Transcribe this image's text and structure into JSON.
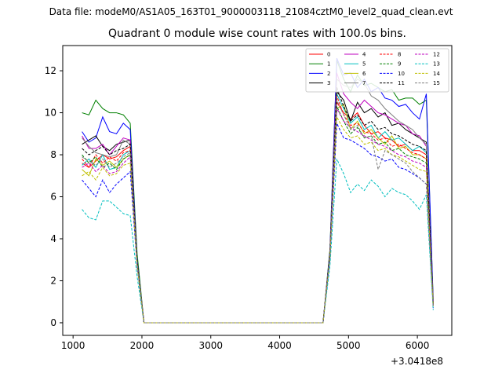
{
  "suptitle": "Data file: modeM0/AS1A05_163T01_9000003118_21084cztM0_level2_quad_clean.evt",
  "chart_data": {
    "type": "line",
    "title": "Quadrant 0 module wise count rates with 100.0s bins.",
    "xlabel": "",
    "ylabel": "",
    "x_offset_label": "+3.0418e8",
    "xlim": [
      850,
      6500
    ],
    "ylim": [
      -0.6,
      13.2
    ],
    "xticks": [
      1000,
      2000,
      3000,
      4000,
      5000,
      6000
    ],
    "yticks": [
      0,
      2,
      4,
      6,
      8,
      10,
      12
    ],
    "grid": false,
    "legend": {
      "placement": "top-right",
      "ncol": 4
    },
    "x": [
      1130,
      1230,
      1330,
      1430,
      1530,
      1630,
      1730,
      1830,
      1930,
      2030,
      2130,
      2230,
      2330,
      2430,
      2530,
      2630,
      2730,
      2830,
      2930,
      3030,
      3130,
      3230,
      3330,
      3430,
      3530,
      3630,
      3730,
      3830,
      3930,
      4030,
      4130,
      4230,
      4330,
      4430,
      4530,
      4630,
      4730,
      4830,
      4930,
      5030,
      5130,
      5230,
      5330,
      5430,
      5530,
      5630,
      5730,
      5830,
      5930,
      6030,
      6130,
      6230
    ],
    "series": [
      {
        "name": "0",
        "color": "#ff0000",
        "dash": false,
        "values": [
          7.6,
          7.4,
          7.7,
          8.0,
          7.8,
          7.9,
          8.2,
          8.4,
          2.9,
          0,
          0,
          0,
          0,
          0,
          0,
          0,
          0,
          0,
          0,
          0,
          0,
          0,
          0,
          0,
          0,
          0,
          0,
          0,
          0,
          0,
          0,
          0,
          0,
          0,
          0,
          0,
          3.2,
          10.5,
          10.0,
          9.7,
          10.0,
          9.4,
          9.0,
          9.1,
          8.8,
          8.7,
          8.4,
          8.5,
          8.2,
          8.2,
          8.0,
          0.9
        ]
      },
      {
        "name": "1",
        "color": "#008000",
        "dash": false,
        "values": [
          10.0,
          9.9,
          10.6,
          10.2,
          10.0,
          10.0,
          9.9,
          9.5,
          3.3,
          0,
          0,
          0,
          0,
          0,
          0,
          0,
          0,
          0,
          0,
          0,
          0,
          0,
          0,
          0,
          0,
          0,
          0,
          0,
          0,
          0,
          0,
          0,
          0,
          0,
          0,
          0,
          3.5,
          12.5,
          11.6,
          11.0,
          11.8,
          11.3,
          11.4,
          11.2,
          11.0,
          11.1,
          10.6,
          10.7,
          10.7,
          10.4,
          10.6,
          1.1
        ]
      },
      {
        "name": "2",
        "color": "#0000ff",
        "dash": false,
        "values": [
          9.1,
          8.6,
          8.8,
          9.8,
          9.1,
          9.0,
          9.5,
          9.2,
          3.0,
          0,
          0,
          0,
          0,
          0,
          0,
          0,
          0,
          0,
          0,
          0,
          0,
          0,
          0,
          0,
          0,
          0,
          0,
          0,
          0,
          0,
          0,
          0,
          0,
          0,
          0,
          0,
          3.4,
          12.6,
          11.8,
          11.9,
          11.2,
          11.6,
          11.0,
          11.2,
          10.7,
          10.6,
          10.3,
          10.4,
          10.0,
          9.7,
          10.9,
          1.0
        ]
      },
      {
        "name": "3",
        "color": "#000000",
        "dash": false,
        "values": [
          8.5,
          8.7,
          8.9,
          8.4,
          8.2,
          8.5,
          8.6,
          8.7,
          2.9,
          0,
          0,
          0,
          0,
          0,
          0,
          0,
          0,
          0,
          0,
          0,
          0,
          0,
          0,
          0,
          0,
          0,
          0,
          0,
          0,
          0,
          0,
          0,
          0,
          0,
          0,
          0,
          3.3,
          11.0,
          10.6,
          9.6,
          10.5,
          10.0,
          10.2,
          9.8,
          10.0,
          9.4,
          9.5,
          9.2,
          9.0,
          8.8,
          8.6,
          0.9
        ]
      },
      {
        "name": "4",
        "color": "#bf00bf",
        "dash": false,
        "values": [
          8.9,
          8.3,
          8.3,
          8.5,
          8.0,
          8.4,
          8.8,
          8.7,
          2.9,
          0,
          0,
          0,
          0,
          0,
          0,
          0,
          0,
          0,
          0,
          0,
          0,
          0,
          0,
          0,
          0,
          0,
          0,
          0,
          0,
          0,
          0,
          0,
          0,
          0,
          0,
          0,
          3.3,
          11.9,
          10.9,
          10.5,
          10.2,
          10.6,
          10.3,
          10.0,
          9.9,
          9.7,
          9.5,
          9.4,
          9.0,
          8.9,
          8.4,
          0.9
        ]
      },
      {
        "name": "5",
        "color": "#00bfbf",
        "dash": false,
        "values": [
          7.5,
          7.8,
          7.4,
          8.0,
          7.3,
          7.4,
          8.0,
          8.2,
          2.8,
          0,
          0,
          0,
          0,
          0,
          0,
          0,
          0,
          0,
          0,
          0,
          0,
          0,
          0,
          0,
          0,
          0,
          0,
          0,
          0,
          0,
          0,
          0,
          0,
          0,
          0,
          0,
          3.2,
          10.9,
          10.2,
          9.5,
          9.8,
          9.2,
          9.4,
          8.8,
          9.1,
          8.7,
          8.8,
          8.5,
          8.2,
          8.4,
          8.1,
          0.8
        ]
      },
      {
        "name": "6",
        "color": "#bfbf00",
        "dash": false,
        "values": [
          7.3,
          7.0,
          7.8,
          7.5,
          7.7,
          7.4,
          7.8,
          8.0,
          2.8,
          0,
          0,
          0,
          0,
          0,
          0,
          0,
          0,
          0,
          0,
          0,
          0,
          0,
          0,
          0,
          0,
          0,
          0,
          0,
          0,
          0,
          0,
          0,
          0,
          0,
          0,
          0,
          3.2,
          10.2,
          10.4,
          9.2,
          9.6,
          9.0,
          9.2,
          8.8,
          8.5,
          8.9,
          8.3,
          8.4,
          8.0,
          8.0,
          7.8,
          0.8
        ]
      },
      {
        "name": "7",
        "color": "#7f7f7f",
        "dash": false,
        "values": [
          8.8,
          8.4,
          8.1,
          8.0,
          7.9,
          8.0,
          8.7,
          8.5,
          2.9,
          0,
          0,
          0,
          0,
          0,
          0,
          0,
          0,
          0,
          0,
          0,
          0,
          0,
          0,
          0,
          0,
          0,
          0,
          0,
          0,
          0,
          0,
          0,
          0,
          0,
          0,
          0,
          3.3,
          11.6,
          11.3,
          11.2,
          11.6,
          11.4,
          10.8,
          10.6,
          10.2,
          9.9,
          9.6,
          9.4,
          9.2,
          8.8,
          8.5,
          0.9
        ]
      },
      {
        "name": "8",
        "color": "#ff0000",
        "dash": true,
        "values": [
          7.8,
          7.4,
          8.0,
          7.6,
          7.9,
          7.7,
          8.1,
          8.2,
          2.8,
          0,
          0,
          0,
          0,
          0,
          0,
          0,
          0,
          0,
          0,
          0,
          0,
          0,
          0,
          0,
          0,
          0,
          0,
          0,
          0,
          0,
          0,
          0,
          0,
          0,
          0,
          0,
          3.2,
          10.8,
          9.9,
          9.4,
          9.5,
          9.1,
          9.0,
          8.7,
          8.8,
          8.4,
          8.5,
          8.3,
          8.1,
          8.0,
          7.8,
          0.8
        ]
      },
      {
        "name": "9",
        "color": "#008000",
        "dash": true,
        "values": [
          8.0,
          7.6,
          7.9,
          7.4,
          7.6,
          7.3,
          7.8,
          8.0,
          2.8,
          0,
          0,
          0,
          0,
          0,
          0,
          0,
          0,
          0,
          0,
          0,
          0,
          0,
          0,
          0,
          0,
          0,
          0,
          0,
          0,
          0,
          0,
          0,
          0,
          0,
          0,
          0,
          3.2,
          10.3,
          9.6,
          9.0,
          9.3,
          8.8,
          8.9,
          8.5,
          8.6,
          8.2,
          8.3,
          8.0,
          7.9,
          7.8,
          7.6,
          0.8
        ]
      },
      {
        "name": "10",
        "color": "#0000ff",
        "dash": true,
        "values": [
          6.8,
          6.4,
          6.0,
          6.8,
          6.2,
          6.6,
          6.9,
          7.2,
          2.7,
          0,
          0,
          0,
          0,
          0,
          0,
          0,
          0,
          0,
          0,
          0,
          0,
          0,
          0,
          0,
          0,
          0,
          0,
          0,
          0,
          0,
          0,
          0,
          0,
          0,
          0,
          0,
          3.0,
          9.5,
          8.8,
          8.7,
          8.5,
          8.3,
          8.0,
          7.9,
          7.7,
          7.8,
          7.4,
          7.3,
          7.1,
          6.9,
          6.6,
          0.7
        ]
      },
      {
        "name": "11",
        "color": "#000000",
        "dash": true,
        "values": [
          8.3,
          8.0,
          8.2,
          8.4,
          8.0,
          8.2,
          8.3,
          8.5,
          2.9,
          0,
          0,
          0,
          0,
          0,
          0,
          0,
          0,
          0,
          0,
          0,
          0,
          0,
          0,
          0,
          0,
          0,
          0,
          0,
          0,
          0,
          0,
          0,
          0,
          0,
          0,
          0,
          3.3,
          11.2,
          10.3,
          9.6,
          9.9,
          9.4,
          9.6,
          9.2,
          9.3,
          9.0,
          8.9,
          8.7,
          8.5,
          8.4,
          8.2,
          0.9
        ]
      },
      {
        "name": "12",
        "color": "#bf00bf",
        "dash": true,
        "values": [
          7.4,
          7.6,
          7.2,
          7.5,
          7.1,
          7.2,
          7.6,
          7.9,
          2.8,
          0,
          0,
          0,
          0,
          0,
          0,
          0,
          0,
          0,
          0,
          0,
          0,
          0,
          0,
          0,
          0,
          0,
          0,
          0,
          0,
          0,
          0,
          0,
          0,
          0,
          0,
          0,
          3.2,
          10.2,
          9.6,
          9.3,
          9.1,
          8.9,
          8.7,
          8.5,
          8.4,
          8.2,
          8.0,
          7.9,
          7.7,
          7.6,
          7.4,
          0.8
        ]
      },
      {
        "name": "13",
        "color": "#00bfbf",
        "dash": true,
        "values": [
          5.4,
          5.0,
          4.9,
          5.8,
          5.8,
          5.5,
          5.2,
          5.1,
          2.2,
          0,
          0,
          0,
          0,
          0,
          0,
          0,
          0,
          0,
          0,
          0,
          0,
          0,
          0,
          0,
          0,
          0,
          0,
          0,
          0,
          0,
          0,
          0,
          0,
          0,
          0,
          0,
          2.7,
          7.8,
          7.1,
          6.2,
          6.6,
          6.3,
          6.8,
          6.5,
          6.0,
          6.4,
          6.2,
          6.1,
          5.8,
          5.4,
          6.1,
          0.6
        ]
      },
      {
        "name": "14",
        "color": "#bfbf00",
        "dash": true,
        "values": [
          7.0,
          7.2,
          6.8,
          7.4,
          7.0,
          7.1,
          7.5,
          7.6,
          2.7,
          0,
          0,
          0,
          0,
          0,
          0,
          0,
          0,
          0,
          0,
          0,
          0,
          0,
          0,
          0,
          0,
          0,
          0,
          0,
          0,
          0,
          0,
          0,
          0,
          0,
          0,
          0,
          3.1,
          9.8,
          9.2,
          8.8,
          8.9,
          8.5,
          8.6,
          8.2,
          8.3,
          8.0,
          7.9,
          7.7,
          7.5,
          7.3,
          7.2,
          0.8
        ]
      },
      {
        "name": "15",
        "color": "#7f7f7f",
        "dash": true,
        "values": [
          7.9,
          7.7,
          7.5,
          7.8,
          7.4,
          7.6,
          7.9,
          8.1,
          2.8,
          0,
          0,
          0,
          0,
          0,
          0,
          0,
          0,
          0,
          0,
          0,
          0,
          0,
          0,
          0,
          0,
          0,
          0,
          0,
          0,
          0,
          0,
          0,
          0,
          0,
          0,
          0,
          3.2,
          10.6,
          9.9,
          9.2,
          9.4,
          8.8,
          8.9,
          7.3,
          8.2,
          8.0,
          7.8,
          7.6,
          7.2,
          6.9,
          6.6,
          0.8
        ]
      }
    ]
  }
}
